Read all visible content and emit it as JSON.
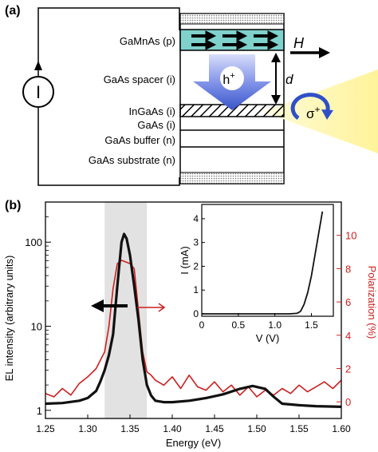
{
  "panel_a": {
    "label": "(a)",
    "layers": [
      {
        "label": "GaMnAs (p)",
        "key": "gamnas"
      },
      {
        "label": "GaAs spacer (i)",
        "key": "spacer"
      },
      {
        "label": "InGaAs (i)",
        "key": "ingaas"
      },
      {
        "label": "GaAs (i)",
        "key": "gaas_i"
      },
      {
        "label": "GaAs buffer (n)",
        "key": "buffer"
      },
      {
        "label": "GaAs substrate (n)",
        "key": "substrate"
      }
    ],
    "field_label": "H",
    "distance_label": "d",
    "hole_label": "h",
    "hole_sup": "+",
    "sigma_label": "σ",
    "sigma_sup": "+",
    "source_symbol": "I",
    "colors": {
      "gamnas": "#7fd1cc",
      "arrow_blue": "#3a55c8",
      "light_yellow": "#fff39a",
      "red": "#cc1f1f"
    }
  },
  "panel_b": {
    "label": "(b)"
  },
  "chart_data": [
    {
      "type": "line",
      "xlabel": "Energy (eV)",
      "ylabel_left": "EL intensity (arbitrary units)",
      "ylabel_right": "Polarization (%)",
      "xlim": [
        1.25,
        1.6
      ],
      "ylim_left": [
        0.8,
        300
      ],
      "yscale_left": "log",
      "ylim_right": [
        -1,
        12
      ],
      "x_ticks": [
        "1.25",
        "1.30",
        "1.35",
        "1.40",
        "1.45",
        "1.50",
        "1.55",
        "1.60"
      ],
      "y_ticks_left": [
        "1",
        "10",
        "100"
      ],
      "y_ticks_right": [
        "0",
        "2",
        "4",
        "6",
        "8",
        "10"
      ],
      "shaded_band": [
        1.32,
        1.37
      ],
      "series": [
        {
          "color": "#111111",
          "axis": "left",
          "x": [
            1.25,
            1.27,
            1.29,
            1.3,
            1.31,
            1.315,
            1.32,
            1.325,
            1.33,
            1.335,
            1.34,
            1.343,
            1.346,
            1.35,
            1.355,
            1.36,
            1.365,
            1.37,
            1.375,
            1.38,
            1.39,
            1.4,
            1.42,
            1.44,
            1.46,
            1.48,
            1.495,
            1.51,
            1.52,
            1.53,
            1.55,
            1.57,
            1.6
          ],
          "values": [
            1.2,
            1.22,
            1.3,
            1.4,
            1.7,
            2.2,
            3.0,
            4.5,
            8,
            30,
            100,
            125,
            110,
            70,
            30,
            12,
            4,
            2,
            1.5,
            1.3,
            1.25,
            1.25,
            1.3,
            1.4,
            1.55,
            1.8,
            1.95,
            1.8,
            1.45,
            1.2,
            1.15,
            1.12,
            1.1
          ]
        },
        {
          "color": "#cc1f1f",
          "axis": "right",
          "x": [
            1.25,
            1.26,
            1.27,
            1.28,
            1.29,
            1.3,
            1.31,
            1.32,
            1.325,
            1.33,
            1.335,
            1.34,
            1.345,
            1.35,
            1.355,
            1.36,
            1.365,
            1.37,
            1.375,
            1.38,
            1.39,
            1.4,
            1.41,
            1.42,
            1.43,
            1.44,
            1.45,
            1.46,
            1.47,
            1.48,
            1.49,
            1.5,
            1.51,
            1.52,
            1.53,
            1.54,
            1.55,
            1.56,
            1.57,
            1.58,
            1.59,
            1.6
          ],
          "values": [
            0.5,
            0.3,
            0.8,
            0.4,
            1.1,
            1.5,
            2.0,
            3.0,
            4.5,
            6.8,
            8.3,
            8.5,
            8.4,
            8.3,
            8.0,
            5.5,
            3.0,
            1.8,
            1.6,
            1.3,
            1.0,
            1.5,
            0.8,
            1.6,
            0.9,
            0.7,
            1.2,
            0.6,
            1.0,
            0.4,
            0.9,
            0.3,
            0.7,
            0.4,
            0.8,
            0.5,
            1.0,
            0.6,
            0.9,
            1.2,
            0.8,
            1.3
          ]
        }
      ]
    },
    {
      "type": "line",
      "xlabel": "V (V)",
      "ylabel": "I (mA)",
      "xlim": [
        0,
        1.8
      ],
      "ylim": [
        -0.1,
        4.6
      ],
      "x_ticks": [
        "0",
        "0.5",
        "1.0",
        "1.5"
      ],
      "y_ticks": [
        "0",
        "1",
        "2",
        "3",
        "4"
      ],
      "series": [
        {
          "color": "#111111",
          "x": [
            0,
            1.2,
            1.3,
            1.35,
            1.4,
            1.45,
            1.5,
            1.55,
            1.6,
            1.65
          ],
          "values": [
            0,
            0,
            0.02,
            0.1,
            0.4,
            0.9,
            1.6,
            2.5,
            3.4,
            4.3
          ]
        }
      ]
    }
  ]
}
